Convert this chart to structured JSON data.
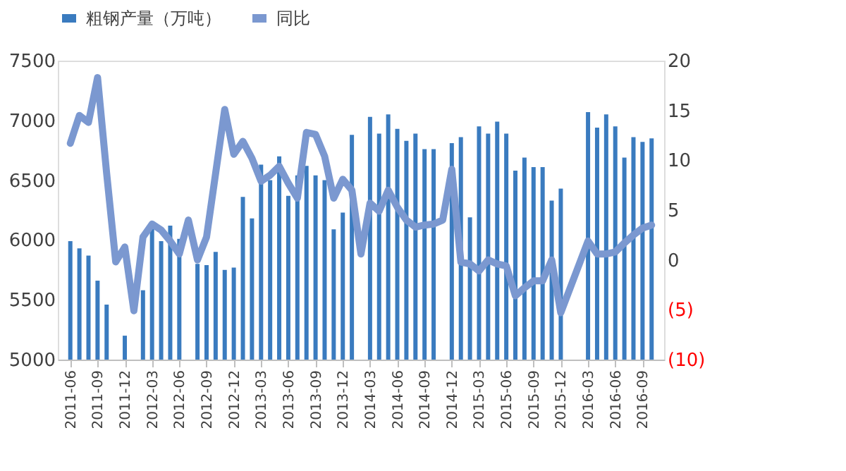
{
  "chart_data": {
    "type": "bar",
    "categories": [
      "2011-06",
      null,
      null,
      "2011-09",
      null,
      null,
      "2011-12",
      null,
      null,
      "2012-03",
      null,
      null,
      "2012-06",
      null,
      null,
      "2012-09",
      null,
      null,
      "2012-12",
      null,
      null,
      "2013-03",
      null,
      null,
      "2013-06",
      null,
      null,
      "2013-09",
      null,
      null,
      "2013-12",
      null,
      null,
      "2014-03",
      null,
      null,
      "2014-06",
      null,
      null,
      "2014-09",
      null,
      null,
      "2014-12",
      null,
      null,
      "2015-03",
      null,
      null,
      "2015-06",
      null,
      null,
      "2015-09",
      null,
      null,
      "2015-12",
      null,
      null,
      "2016-03",
      null,
      null,
      "2016-06",
      null,
      null,
      "2016-09",
      null
    ],
    "series": [
      {
        "name": "粗钢产量（万吨）",
        "color": "#3a7bbf",
        "values": [
          5990,
          5930,
          5870,
          5660,
          5460,
          null,
          5200,
          null,
          5580,
          6100,
          5990,
          6120,
          6010,
          null,
          5800,
          5790,
          5900,
          5750,
          5770,
          6360,
          6180,
          6630,
          6500,
          6700,
          6370,
          6540,
          6620,
          6540,
          6500,
          6090,
          6230,
          6880,
          null,
          7030,
          6890,
          7050,
          6930,
          6830,
          6890,
          6760,
          6760,
          null,
          6810,
          6860,
          6190,
          6950,
          6890,
          6990,
          6890,
          6580,
          6690,
          6610,
          6610,
          6330,
          6430,
          null,
          null,
          7070,
          6940,
          7050,
          6950,
          6690,
          6860,
          6820,
          6850
        ]
      },
      {
        "name": "同比",
        "type": "line",
        "axis": "y2",
        "color": "#7b98d0",
        "values": [
          11.7,
          14.5,
          13.8,
          18.3,
          8.7,
          -0.2,
          1.3,
          -5.1,
          2.3,
          3.6,
          3.0,
          1.9,
          0.6,
          4.0,
          0.0,
          2.3,
          8.7,
          15.1,
          10.6,
          11.9,
          10.2,
          7.9,
          8.5,
          9.4,
          7.7,
          6.2,
          12.8,
          12.6,
          10.4,
          6.2,
          8.1,
          7.0,
          0.6,
          5.7,
          4.9,
          7.0,
          5.3,
          4.0,
          3.3,
          3.5,
          3.6,
          4.0,
          9.1,
          -0.2,
          -0.4,
          -1.1,
          0.0,
          -0.4,
          -0.6,
          -3.6,
          -2.8,
          -2.1,
          -2.1,
          0.0,
          -5.3,
          null,
          null,
          1.9,
          0.6,
          0.6,
          0.8,
          1.7,
          2.5,
          3.2,
          3.5
        ]
      }
    ],
    "ylim": [
      5000,
      7500
    ],
    "yticks": [
      5000,
      5500,
      6000,
      6500,
      7000,
      7500
    ],
    "y2lim": [
      -10,
      20
    ],
    "y2ticks": [
      {
        "value": -10,
        "label": "(10)"
      },
      {
        "value": -5,
        "label": "(5)"
      },
      0,
      5,
      10,
      15,
      20
    ],
    "legend": "top",
    "grid": false
  }
}
